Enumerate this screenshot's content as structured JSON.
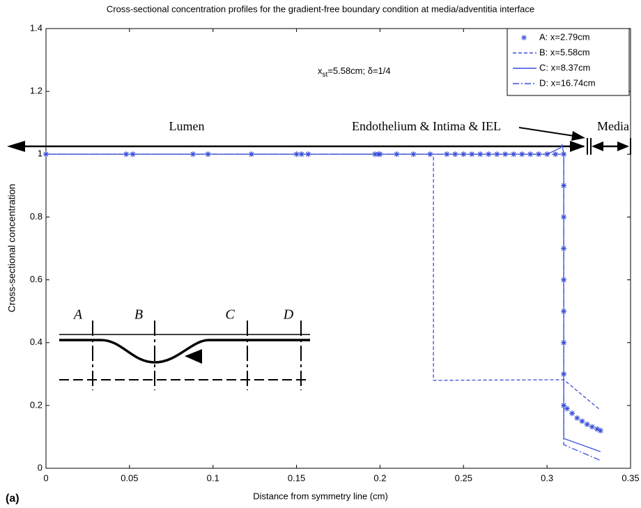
{
  "chart_data": {
    "type": "line",
    "title": "Cross-sectional concentration profiles for the gradient-free boundary condition at media/adventitia interface",
    "x_label": "Distance from symmetry line (cm)",
    "y_label": "Cross-sectional concentration",
    "panel_label": "(a)",
    "annotation": {
      "main": "x",
      "sub": "st",
      "rest": "=5.58cm; δ=1/4"
    },
    "regions": [
      "Lumen",
      "Endothelium & Intima & IEL",
      "Media"
    ],
    "inset_labels": [
      "A",
      "B",
      "C",
      "D"
    ],
    "xlim": [
      0,
      0.35
    ],
    "ylim": [
      0,
      1.4
    ],
    "xticks": [
      0,
      0.05,
      0.1,
      0.15,
      0.2,
      0.25,
      0.3,
      0.35
    ],
    "yticks": [
      0,
      0.2,
      0.4,
      0.6,
      0.8,
      1,
      1.2,
      1.4
    ],
    "legend": "upper right",
    "series": [
      {
        "name": "A: x=2.79cm",
        "color": "#3a4fd8",
        "style": "markers",
        "x": [
          0,
          0.048,
          0.052,
          0.088,
          0.097,
          0.123,
          0.15,
          0.153,
          0.157,
          0.197,
          0.199,
          0.2,
          0.21,
          0.22,
          0.23,
          0.24,
          0.245,
          0.25,
          0.255,
          0.26,
          0.265,
          0.27,
          0.275,
          0.28,
          0.285,
          0.29,
          0.295,
          0.3,
          0.305,
          0.31,
          0.31,
          0.31,
          0.31,
          0.31,
          0.31,
          0.31,
          0.31,
          0.31,
          0.312,
          0.315,
          0.318,
          0.321,
          0.324,
          0.327,
          0.33,
          0.332
        ],
        "values": [
          1,
          1,
          1,
          1,
          1,
          1,
          1,
          1,
          1,
          1,
          1,
          1,
          1,
          1,
          1,
          1,
          1,
          1,
          1,
          1,
          1,
          1,
          1,
          1,
          1,
          1,
          1,
          1,
          1,
          1,
          0.9,
          0.8,
          0.7,
          0.6,
          0.5,
          0.4,
          0.3,
          0.2,
          0.19,
          0.175,
          0.16,
          0.15,
          0.14,
          0.132,
          0.125,
          0.12
        ]
      },
      {
        "name": "B: x=5.58cm",
        "color": "#3a4fd8",
        "style": "dashed",
        "x": [
          0,
          0.232,
          0.232,
          0.31,
          0.332
        ],
        "values": [
          1,
          1,
          0.28,
          0.282,
          0.185
        ]
      },
      {
        "name": "C: x=8.37cm",
        "color": "#3a4fd8",
        "style": "solid",
        "x": [
          0,
          0.3,
          0.308,
          0.309,
          0.31,
          0.31,
          0.332
        ],
        "values": [
          1,
          1,
          1.02,
          1.03,
          1,
          0.095,
          0.053
        ]
      },
      {
        "name": "D: x=16.74cm",
        "color": "#3a4fd8",
        "style": "dashdot",
        "x": [
          0,
          0.31,
          0.31,
          0.332
        ],
        "values": [
          1,
          1,
          0.075,
          0.025
        ]
      }
    ]
  }
}
